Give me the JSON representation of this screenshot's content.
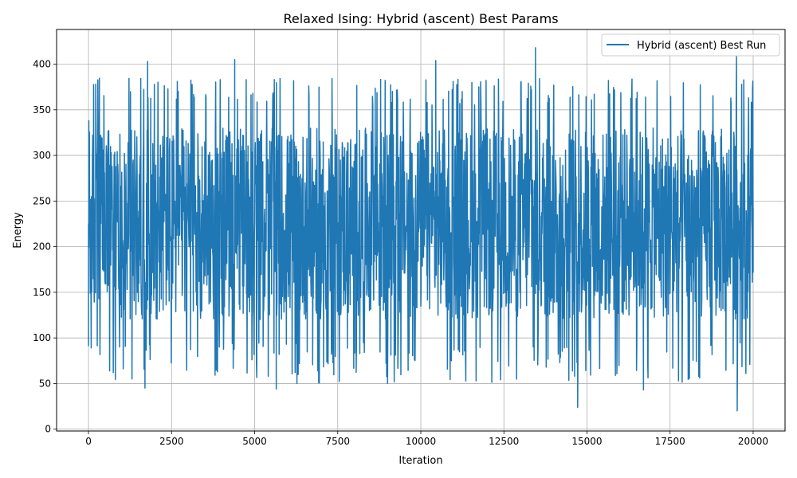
{
  "chart_data": {
    "type": "line",
    "title": "Relaxed Ising: Hybrid (ascent) Best Params",
    "xlabel": "Iteration",
    "ylabel": "Energy",
    "xlim": [
      -960,
      20960
    ],
    "ylim": [
      -2,
      438
    ],
    "xticks": [
      0,
      2500,
      5000,
      7500,
      10000,
      12500,
      15000,
      17500,
      20000
    ],
    "yticks": [
      0,
      50,
      100,
      150,
      200,
      250,
      300,
      350,
      400
    ],
    "grid": true,
    "legend_position": "top-right",
    "series": [
      {
        "name": "Hybrid (ascent) Best Run",
        "color": "#1f77b4",
        "x_range": [
          0,
          20000
        ],
        "n_points": 20001,
        "typical_band": [
          100,
          350
        ],
        "notable_points": [
          {
            "x": 0,
            "y": 91
          },
          {
            "x": 10,
            "y": 338
          },
          {
            "x": 1700,
            "y": 45
          },
          {
            "x": 1780,
            "y": 403
          },
          {
            "x": 4400,
            "y": 405
          },
          {
            "x": 5650,
            "y": 44
          },
          {
            "x": 10450,
            "y": 404
          },
          {
            "x": 13450,
            "y": 418
          },
          {
            "x": 14720,
            "y": 24
          },
          {
            "x": 16700,
            "y": 43
          },
          {
            "x": 19520,
            "y": 20
          },
          {
            "x": 19500,
            "y": 409
          },
          {
            "x": 20000,
            "y": 172
          }
        ]
      }
    ]
  }
}
